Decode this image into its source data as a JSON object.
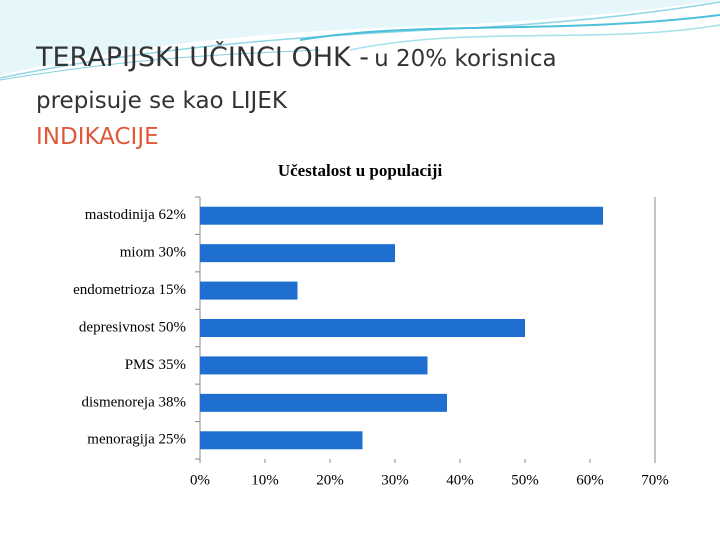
{
  "header": {
    "title_main": "TERAPIJSKI UČINCI OHK -",
    "title_sub": "u 20% korisnica",
    "line2": "prepisuje se kao LIJEK",
    "line3": "INDIKACIJE"
  },
  "chart_data": {
    "type": "bar",
    "orientation": "horizontal",
    "title": "Učestalost u populaciji",
    "categories": [
      "mastodinija 62%",
      "miom 30%",
      "endometrioza 15%",
      "depresivnost 50%",
      "PMS 35%",
      "dismenoreja 38%",
      "menoragija 25%"
    ],
    "values": [
      62,
      30,
      15,
      50,
      35,
      38,
      25
    ],
    "color": "#1f6fd1",
    "xlim": [
      0,
      70
    ],
    "xticks": [
      {
        "value": 0,
        "label": "0%"
      },
      {
        "value": 10,
        "label": "10%"
      },
      {
        "value": 20,
        "label": "20%"
      },
      {
        "value": 30,
        "label": "30%"
      },
      {
        "value": 40,
        "label": "40%"
      },
      {
        "value": 50,
        "label": "50%"
      },
      {
        "value": 60,
        "label": "60%"
      },
      {
        "value": 70,
        "label": "70%"
      }
    ],
    "grid": false
  }
}
